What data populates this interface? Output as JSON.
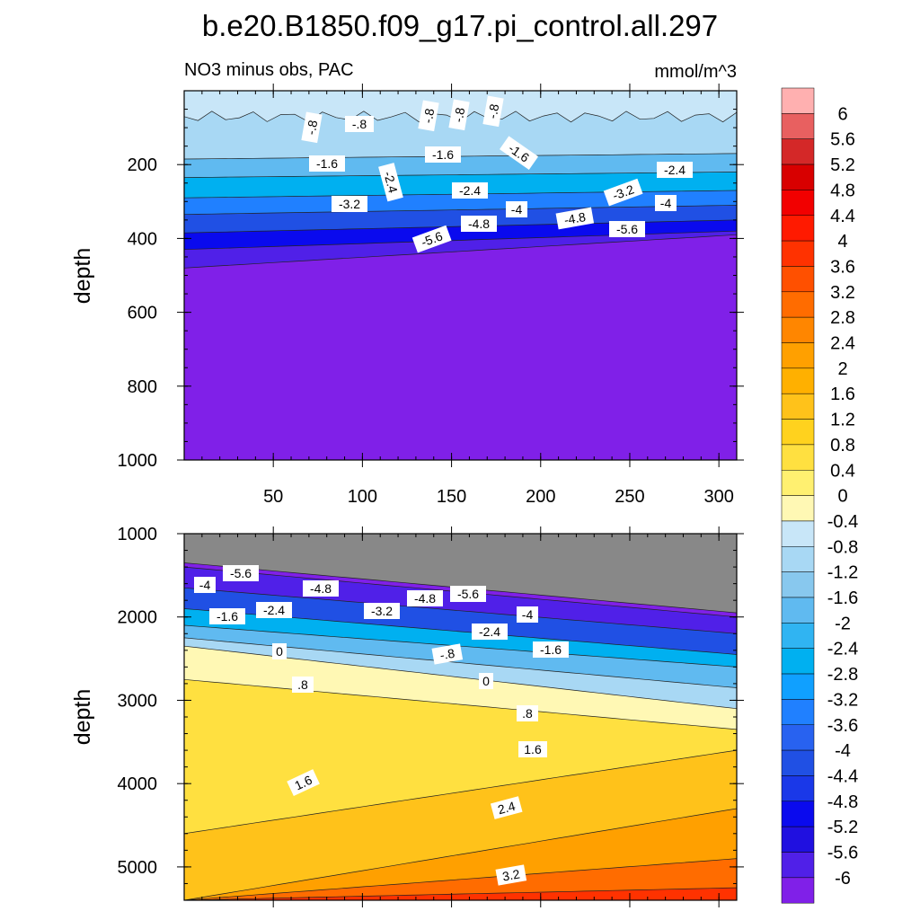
{
  "title": "b.e20.B1850.f09_g17.pi_control.all.297",
  "chart_data": [
    {
      "type": "contour",
      "title": "NO3 minus obs, PAC",
      "units": "mmol/m^3",
      "ylabel": "depth",
      "xlabel": "",
      "xlim": [
        0,
        310
      ],
      "ylim": [
        0,
        1000
      ],
      "y_inverted": true,
      "x_ticks": [
        "50",
        "100",
        "150",
        "200",
        "250",
        "300"
      ],
      "y_ticks": [
        "200",
        "400",
        "600",
        "800",
        "1000"
      ],
      "contour_labels": [
        "-.8",
        "-.8",
        "-.8",
        "-.8",
        "-.8",
        "-1.6",
        "-1.6",
        "-1.6",
        "-2.4",
        "-2.4",
        "-2.4",
        "-3.2",
        "-3.2",
        "-4",
        "-4",
        "-4.8",
        "-4.8",
        "-5.6",
        "-5.6"
      ],
      "level_depths": [
        {
          "level": -0.8,
          "y": [
            70,
            70
          ]
        },
        {
          "level": -1.6,
          "y": [
            185,
            170
          ]
        },
        {
          "level": -2.4,
          "y": [
            235,
            220
          ]
        },
        {
          "level": -3.2,
          "y": [
            290,
            270
          ]
        },
        {
          "level": -4.0,
          "y": [
            335,
            310
          ]
        },
        {
          "level": -4.8,
          "y": [
            385,
            350
          ]
        },
        {
          "level": -5.6,
          "y": [
            430,
            380
          ]
        },
        {
          "level": -6.0,
          "y": [
            480,
            390
          ]
        }
      ]
    },
    {
      "type": "contour",
      "title": "",
      "units": "",
      "ylabel": "depth",
      "xlabel": "",
      "xlim": [
        0,
        310
      ],
      "ylim": [
        1000,
        5400
      ],
      "y_inverted": true,
      "y_ticks": [
        "1000",
        "2000",
        "3000",
        "4000",
        "5000"
      ],
      "contour_labels": [
        "-5.6",
        "-4",
        "-4.8",
        "-4.8",
        "-5.6",
        "-1.6",
        "-2.4",
        "-3.2",
        "-4",
        "-2.4",
        "-1.6",
        "-.8",
        "0",
        "0",
        ".8",
        ".8",
        "1.6",
        "1.6",
        "2.4",
        "3.2"
      ],
      "level_depths": [
        {
          "level": -6.0,
          "y": [
            1350,
            1950
          ]
        },
        {
          "level": -5.6,
          "y": [
            1400,
            2000
          ]
        },
        {
          "level": -4.0,
          "y": [
            1650,
            2200
          ]
        },
        {
          "level": -2.4,
          "y": [
            1900,
            2450
          ]
        },
        {
          "level": -1.6,
          "y": [
            2100,
            2600
          ]
        },
        {
          "level": -0.8,
          "y": [
            2250,
            2850
          ]
        },
        {
          "level": 0.0,
          "y": [
            2350,
            3100
          ]
        },
        {
          "level": 0.8,
          "y": [
            2750,
            3350
          ]
        },
        {
          "level": 1.6,
          "y": [
            4600,
            3600
          ]
        },
        {
          "level": 2.4,
          "y": [
            5400,
            4300
          ]
        },
        {
          "level": 3.2,
          "y": [
            5400,
            4900
          ]
        },
        {
          "level": 4.0,
          "y": [
            5400,
            5250
          ]
        }
      ]
    }
  ],
  "colorbar": {
    "labels": [
      "6",
      "5.6",
      "5.2",
      "4.8",
      "4.4",
      "4",
      "3.6",
      "3.2",
      "2.8",
      "2.4",
      "2",
      "1.6",
      "1.2",
      "0.8",
      "0.4",
      "0",
      "-0.4",
      "-0.8",
      "-1.2",
      "-1.6",
      "-2",
      "-2.4",
      "-2.8",
      "-3.2",
      "-3.6",
      "-4",
      "-4.4",
      "-4.8",
      "-5.2",
      "-5.6",
      "-6"
    ],
    "colors": [
      "#ffb0b0",
      "#e86060",
      "#d42828",
      "#d80000",
      "#f20000",
      "#ff1a00",
      "#ff3200",
      "#ff5000",
      "#ff6c00",
      "#ff8600",
      "#ffa000",
      "#ffb000",
      "#ffc21a",
      "#ffd21e",
      "#ffe040",
      "#fff070",
      "#fff8b4",
      "#c8e6f8",
      "#a8d8f4",
      "#88c8ee",
      "#60baf0",
      "#30b4f2",
      "#00b0f0",
      "#10a0ff",
      "#2080ff",
      "#2862f0",
      "#2050e4",
      "#1a38e8",
      "#0a0aee",
      "#2010e0",
      "#5020e8",
      "#8020e8"
    ]
  }
}
